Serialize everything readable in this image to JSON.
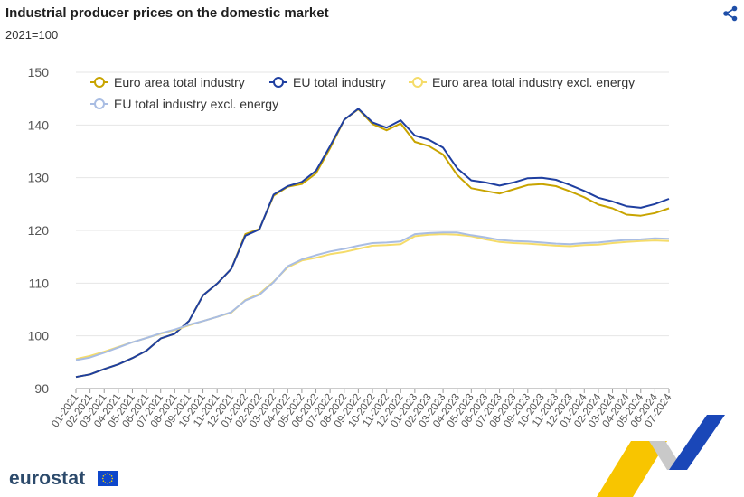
{
  "header": {
    "title": "Industrial producer prices on the domestic market",
    "subtitle": "2021=100"
  },
  "footer": {
    "logo_text": "eurostat"
  },
  "icons": {
    "share": "share-icon",
    "flag": "eu-flag-icon"
  },
  "chart_data": {
    "type": "line",
    "title": "Industrial producer prices on the domestic market",
    "subtitle": "2021=100",
    "xlabel": "",
    "ylabel": "",
    "ylim": [
      90,
      150
    ],
    "yticks": [
      90,
      100,
      110,
      120,
      130,
      140,
      150
    ],
    "grid": true,
    "legend_position": "top",
    "categories": [
      "01-2021",
      "02-2021",
      "03-2021",
      "04-2021",
      "05-2021",
      "06-2021",
      "07-2021",
      "08-2021",
      "09-2021",
      "10-2021",
      "11-2021",
      "12-2021",
      "01-2022",
      "02-2022",
      "03-2022",
      "04-2022",
      "05-2022",
      "06-2022",
      "07-2022",
      "08-2022",
      "09-2022",
      "10-2022",
      "11-2022",
      "12-2022",
      "01-2023",
      "02-2023",
      "03-2023",
      "04-2023",
      "05-2023",
      "06-2023",
      "07-2023",
      "08-2023",
      "09-2023",
      "10-2023",
      "11-2023",
      "12-2023",
      "01-2024",
      "02-2024",
      "03-2024",
      "04-2024",
      "05-2024",
      "06-2024",
      "07-2024"
    ],
    "series": [
      {
        "name": "Euro area total industry",
        "color": "#c8a400",
        "values": [
          92.2,
          92.7,
          93.7,
          94.6,
          95.8,
          97.2,
          99.5,
          100.4,
          102.8,
          107.7,
          109.9,
          112.7,
          119.3,
          120.3,
          126.6,
          128.3,
          128.8,
          130.8,
          135.6,
          141.0,
          143.0,
          140.2,
          139.0,
          140.3,
          136.8,
          136.0,
          134.4,
          130.5,
          128.0,
          127.5,
          127.0,
          127.8,
          128.6,
          128.8,
          128.4,
          127.4,
          126.3,
          124.9,
          124.2,
          123.0,
          122.8,
          123.3,
          124.2
        ]
      },
      {
        "name": "EU total industry",
        "color": "#1f3fa0",
        "values": [
          92.2,
          92.7,
          93.7,
          94.6,
          95.8,
          97.2,
          99.5,
          100.4,
          102.8,
          107.7,
          109.9,
          112.7,
          119.0,
          120.2,
          126.8,
          128.4,
          129.2,
          131.3,
          136.0,
          141.0,
          143.1,
          140.5,
          139.5,
          140.9,
          138.0,
          137.2,
          135.7,
          131.8,
          129.5,
          129.1,
          128.5,
          129.1,
          129.9,
          130.0,
          129.6,
          128.6,
          127.5,
          126.2,
          125.5,
          124.6,
          124.3,
          125.0,
          126.0
        ]
      },
      {
        "name": "Euro area total industry excl. energy",
        "color": "#f5dc6a",
        "values": [
          95.6,
          96.2,
          97.0,
          97.9,
          98.8,
          99.6,
          100.4,
          101.1,
          102.0,
          102.8,
          103.6,
          104.4,
          106.8,
          108.0,
          110.3,
          113.0,
          114.3,
          114.8,
          115.5,
          115.9,
          116.5,
          117.1,
          117.2,
          117.4,
          118.9,
          119.2,
          119.3,
          119.2,
          118.9,
          118.3,
          117.8,
          117.6,
          117.5,
          117.3,
          117.1,
          117.0,
          117.2,
          117.3,
          117.6,
          117.8,
          118.0,
          118.1,
          118.0
        ]
      },
      {
        "name": "EU total industry excl. energy",
        "color": "#a9bde3",
        "values": [
          95.4,
          95.9,
          96.8,
          97.8,
          98.8,
          99.6,
          100.5,
          101.2,
          102.1,
          102.8,
          103.6,
          104.5,
          106.7,
          107.8,
          110.2,
          113.2,
          114.5,
          115.3,
          116.0,
          116.5,
          117.1,
          117.6,
          117.7,
          117.9,
          119.3,
          119.5,
          119.6,
          119.6,
          119.1,
          118.7,
          118.2,
          118.0,
          117.9,
          117.7,
          117.5,
          117.4,
          117.6,
          117.7,
          118.0,
          118.2,
          118.3,
          118.5,
          118.4
        ]
      }
    ]
  }
}
